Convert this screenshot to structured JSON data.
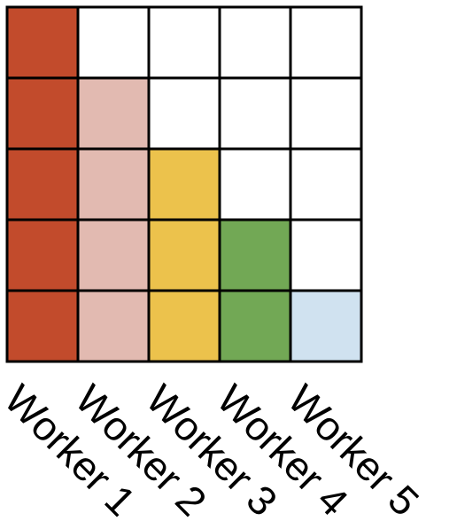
{
  "workers": [
    {
      "label": "Worker 1",
      "color": "#c24b2c",
      "filled_cells": 5
    },
    {
      "label": "Worker 2",
      "color": "#e2bab1",
      "filled_cells": 4
    },
    {
      "label": "Worker 3",
      "color": "#ecc24c",
      "filled_cells": 3
    },
    {
      "label": "Worker 4",
      "color": "#72a855",
      "filled_cells": 2
    },
    {
      "label": "Worker 5",
      "color": "#d0e2f0",
      "filled_cells": 1
    }
  ],
  "grid": {
    "rows": 5,
    "columns": 5,
    "empty_color": "#ffffff"
  }
}
